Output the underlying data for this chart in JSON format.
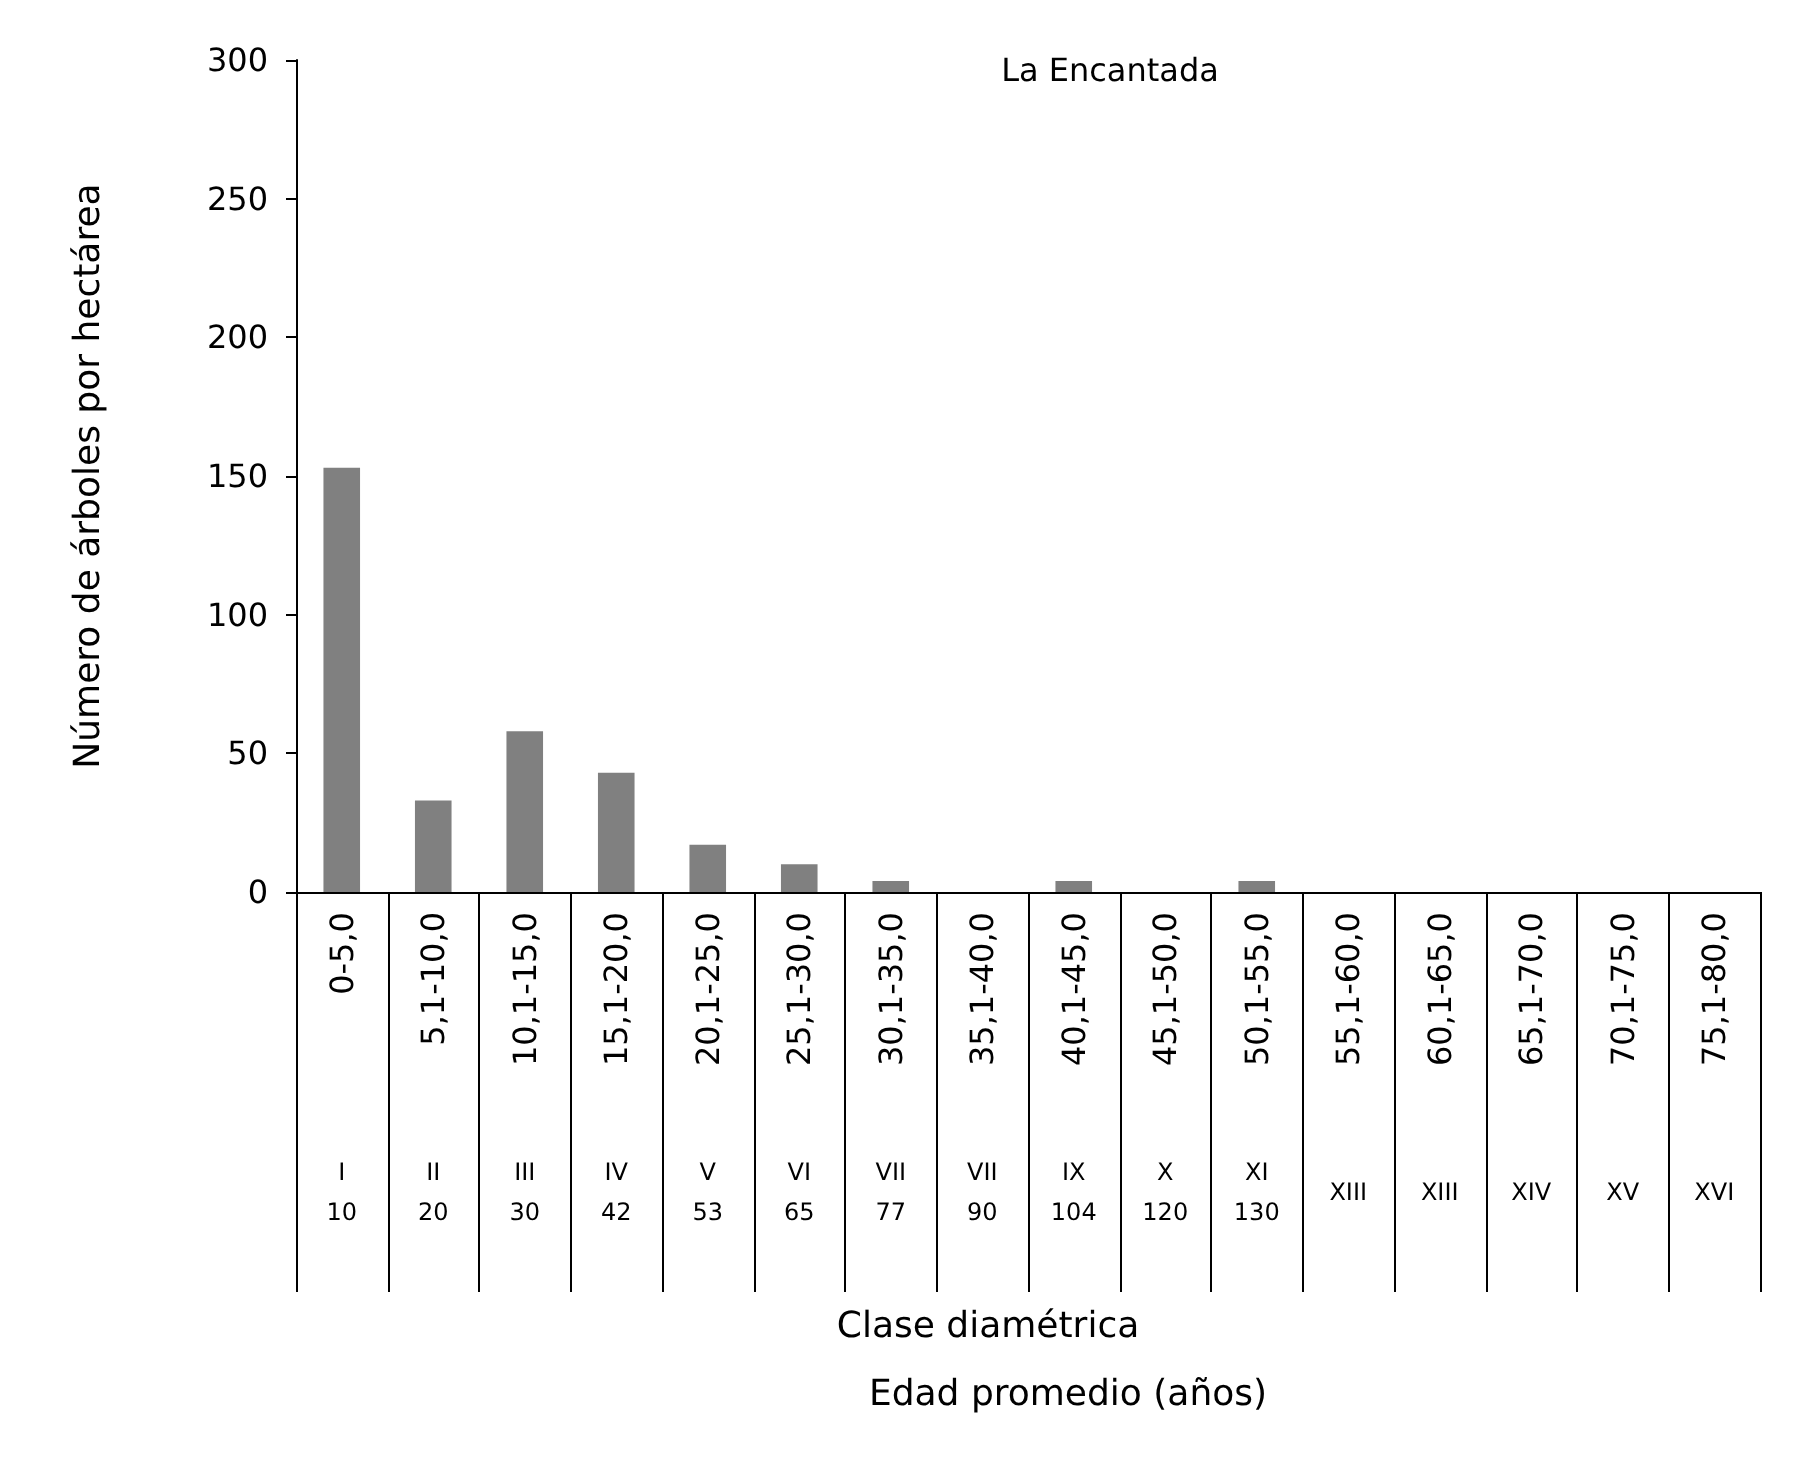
{
  "chart_data": {
    "type": "bar",
    "title": "La Encantada",
    "ylabel": "Número de árboles por hectárea",
    "categories": [
      "0-5,0",
      "5,1-10,0",
      "10,1-15,0",
      "15,1-20,0",
      "20,1-25,0",
      "25,1-30,0",
      "30,1-35,0",
      "35,1-40,0",
      "40,1-45,0",
      "45,1-50,0",
      "50,1-55,0",
      "55,1-60,0",
      "60,1-65,0",
      "65,1-70,0",
      "70,1-75,0",
      "75,1-80,0"
    ],
    "values": [
      153,
      33,
      58,
      43,
      17,
      10,
      4,
      0,
      4,
      0,
      4,
      0,
      0,
      0,
      0,
      0
    ],
    "color": "#808080",
    "ylim": [
      0,
      300
    ],
    "yticks": [
      0,
      50,
      100,
      150,
      200,
      250,
      300
    ],
    "grid": false,
    "annotations": [
      "I\n10",
      "II\n20",
      "III\n30",
      "IV\n42",
      "V\n53",
      "VI\n65",
      "VII\n77",
      "VII\n90",
      "IX\n104",
      "X\n120",
      "XI\n130",
      "XIII",
      "XIII",
      "XIV",
      "XV",
      "XVI",
      "Clase diamétrica",
      "Edad promedio (años)"
    ]
  }
}
